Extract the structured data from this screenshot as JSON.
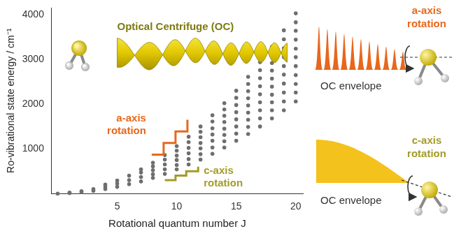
{
  "chart_data": {
    "type": "scatter",
    "xlabel": "Rotational quantum number J",
    "ylabel": "Ro-vibrational state energy / cm⁻¹",
    "annotations": [
      "Optical Centrifuge (OC)"
    ],
    "x": [
      0,
      1,
      1,
      2,
      2,
      3,
      3,
      4,
      4,
      4,
      5,
      5,
      5,
      6,
      6,
      6,
      7,
      7,
      7,
      7,
      8,
      8,
      8,
      8,
      8,
      9,
      9,
      9,
      9,
      9,
      10,
      10,
      10,
      10,
      10,
      10,
      11,
      11,
      11,
      11,
      11,
      11,
      12,
      12,
      12,
      12,
      12,
      12,
      12,
      13,
      13,
      13,
      13,
      13,
      13,
      13,
      14,
      14,
      14,
      14,
      14,
      14,
      14,
      14,
      15,
      15,
      15,
      15,
      15,
      15,
      15,
      15,
      16,
      16,
      16,
      16,
      16,
      16,
      16,
      16,
      16,
      17,
      17,
      17,
      17,
      17,
      17,
      17,
      17,
      17,
      18,
      18,
      18,
      18,
      18,
      18,
      18,
      18,
      18,
      18,
      19,
      19,
      19,
      19,
      19,
      19,
      19,
      19,
      19,
      19,
      20,
      20,
      20,
      20,
      20,
      20,
      20,
      20,
      20,
      20,
      20
    ],
    "values": [
      0,
      10,
      20,
      30,
      55,
      60,
      100,
      100,
      150,
      200,
      150,
      220,
      290,
      210,
      300,
      400,
      270,
      370,
      470,
      540,
      350,
      430,
      520,
      610,
      690,
      440,
      540,
      650,
      760,
      860,
      540,
      640,
      750,
      850,
      960,
      1060,
      650,
      770,
      900,
      1020,
      1150,
      1270,
      760,
      880,
      1010,
      1130,
      1260,
      1380,
      1500,
      890,
      1030,
      1180,
      1320,
      1460,
      1610,
      1750,
      1030,
      1170,
      1310,
      1450,
      1600,
      1740,
      1880,
      2020,
      1180,
      1340,
      1500,
      1660,
      1820,
      1980,
      2140,
      2300,
      1330,
      1490,
      1650,
      1810,
      1970,
      2130,
      2290,
      2450,
      2610,
      1500,
      1680,
      1860,
      2040,
      2220,
      2400,
      2580,
      2760,
      2940,
      1680,
      1860,
      2040,
      2210,
      2390,
      2570,
      2750,
      2920,
      3100,
      3280,
      1860,
      2060,
      2260,
      2460,
      2660,
      2850,
      3050,
      3250,
      3450,
      3650,
      2060,
      2260,
      2450,
      2650,
      2850,
      3050,
      3240,
      3440,
      3640,
      3830,
      4030
    ],
    "color": "#6e6e6e",
    "marker": "circle",
    "xlim": [
      -0.5,
      20.6
    ],
    "ylim": [
      0,
      4150
    ],
    "xticks": [
      5,
      10,
      15,
      20
    ],
    "yticks": [
      1000,
      2000,
      3000,
      4000
    ],
    "grid": false,
    "staircases": [
      {
        "label": "a-axis rotation",
        "color": "#e8671c",
        "x": [
          7.9,
          8.9,
          9.9,
          10.9
        ],
        "y": [
          870,
          1130,
          1390,
          1650
        ]
      },
      {
        "label": "c-axis rotation",
        "color": "#a39b27",
        "x": [
          9.0,
          9.9,
          10.8,
          11.8
        ],
        "y": [
          300,
          400,
          500,
          600
        ]
      }
    ]
  },
  "panels": [
    {
      "caption": "OC envelope",
      "label": "a-axis rotation",
      "color": "#e8671c"
    },
    {
      "caption": "OC envelope",
      "label": "c-axis rotation",
      "color": "#a39b27"
    }
  ]
}
